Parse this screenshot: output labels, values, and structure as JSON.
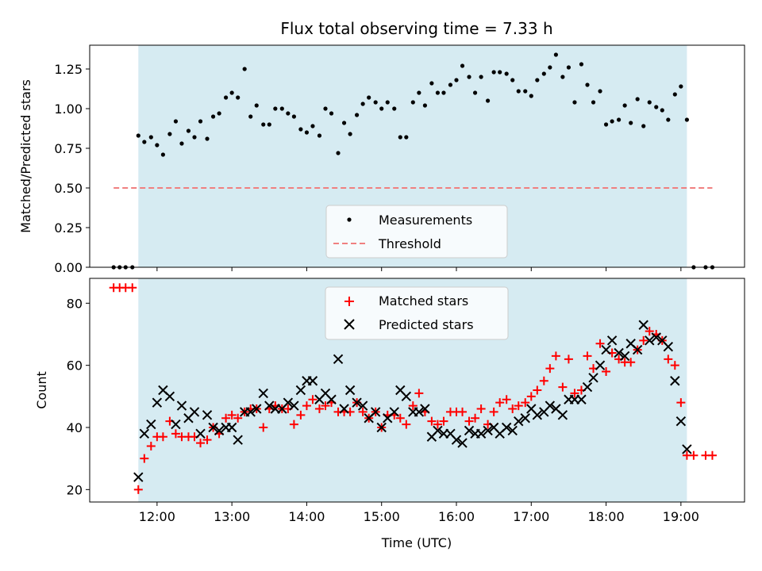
{
  "chart_data": [
    {
      "type": "scatter",
      "title": "Flux total observing time = 7.33 h",
      "xlabel": "",
      "ylabel": "Matched/Predicted stars",
      "xlim": [
        11.1,
        19.85
      ],
      "ylim": [
        0,
        1.4
      ],
      "yticks": [
        "0.00",
        "0.25",
        "0.50",
        "0.75",
        "1.00",
        "1.25"
      ],
      "shaded_span": [
        11.75,
        19.08
      ],
      "grid": false,
      "legend_position": "lower-center",
      "series": [
        {
          "name": "Measurements",
          "marker": "dot",
          "color": "#000000",
          "x": [
            11.42,
            11.5,
            11.58,
            11.67,
            11.75,
            11.83,
            11.92,
            12.0,
            12.08,
            12.17,
            12.25,
            12.33,
            12.42,
            12.5,
            12.58,
            12.67,
            12.75,
            12.83,
            12.92,
            13.0,
            13.08,
            13.17,
            13.25,
            13.33,
            13.42,
            13.5,
            13.58,
            13.67,
            13.75,
            13.83,
            13.92,
            14.0,
            14.08,
            14.17,
            14.25,
            14.33,
            14.42,
            14.5,
            14.58,
            14.67,
            14.75,
            14.83,
            14.92,
            15.0,
            15.08,
            15.17,
            15.25,
            15.33,
            15.42,
            15.5,
            15.58,
            15.67,
            15.75,
            15.83,
            15.92,
            16.0,
            16.08,
            16.17,
            16.25,
            16.33,
            16.42,
            16.5,
            16.58,
            16.67,
            16.75,
            16.83,
            16.92,
            17.0,
            17.08,
            17.17,
            17.25,
            17.33,
            17.42,
            17.5,
            17.58,
            17.67,
            17.75,
            17.83,
            17.92,
            18.0,
            18.08,
            18.17,
            18.25,
            18.33,
            18.42,
            18.5,
            18.58,
            18.67,
            18.75,
            18.83,
            18.92,
            19.0,
            19.08,
            19.17,
            19.33,
            19.42
          ],
          "y": [
            0,
            0,
            0,
            0,
            0.83,
            0.79,
            0.82,
            0.77,
            0.71,
            0.84,
            0.92,
            0.78,
            0.86,
            0.82,
            0.92,
            0.81,
            0.95,
            0.97,
            1.07,
            1.1,
            1.07,
            1.25,
            0.95,
            1.02,
            0.9,
            0.9,
            1.0,
            1.0,
            0.97,
            0.95,
            0.87,
            0.85,
            0.89,
            0.83,
            1.0,
            0.97,
            0.72,
            0.91,
            0.84,
            0.96,
            1.03,
            1.07,
            1.04,
            1.0,
            1.04,
            1.0,
            0.82,
            0.82,
            1.04,
            1.1,
            1.02,
            1.16,
            1.1,
            1.1,
            1.15,
            1.18,
            1.27,
            1.2,
            1.1,
            1.2,
            1.05,
            1.23,
            1.23,
            1.22,
            1.18,
            1.11,
            1.11,
            1.08,
            1.18,
            1.22,
            1.26,
            1.34,
            1.2,
            1.26,
            1.04,
            1.28,
            1.15,
            1.04,
            1.11,
            0.9,
            0.92,
            0.93,
            1.02,
            0.91,
            1.06,
            0.89,
            1.04,
            1.01,
            0.99,
            0.93,
            1.09,
            1.14,
            0.93,
            0,
            0,
            0
          ]
        },
        {
          "name": "Threshold",
          "style": "dashed",
          "color": "#f08080",
          "x": [
            11.42,
            19.42
          ],
          "y": [
            0.5,
            0.5
          ]
        }
      ]
    },
    {
      "type": "scatter",
      "title": "",
      "xlabel": "Time (UTC)",
      "ylabel": "Count",
      "xlim": [
        11.1,
        19.85
      ],
      "ylim": [
        16,
        88
      ],
      "xticks": [
        "12:00",
        "13:00",
        "14:00",
        "15:00",
        "16:00",
        "17:00",
        "18:00",
        "19:00"
      ],
      "yticks": [
        "20",
        "40",
        "60",
        "80"
      ],
      "shaded_span": [
        11.75,
        19.08
      ],
      "grid": false,
      "legend_position": "upper-center",
      "series": [
        {
          "name": "Matched stars",
          "marker": "plus",
          "color": "#ff0000",
          "x": [
            11.42,
            11.5,
            11.58,
            11.67,
            11.75,
            11.83,
            11.92,
            12.0,
            12.08,
            12.17,
            12.25,
            12.33,
            12.42,
            12.5,
            12.58,
            12.67,
            12.75,
            12.83,
            12.92,
            13.0,
            13.08,
            13.17,
            13.25,
            13.33,
            13.42,
            13.5,
            13.58,
            13.67,
            13.75,
            13.83,
            13.92,
            14.0,
            14.08,
            14.17,
            14.25,
            14.33,
            14.42,
            14.5,
            14.58,
            14.67,
            14.75,
            14.83,
            14.92,
            15.0,
            15.08,
            15.17,
            15.25,
            15.33,
            15.42,
            15.5,
            15.58,
            15.67,
            15.75,
            15.83,
            15.92,
            16.0,
            16.08,
            16.17,
            16.25,
            16.33,
            16.42,
            16.5,
            16.58,
            16.67,
            16.75,
            16.83,
            16.92,
            17.0,
            17.08,
            17.17,
            17.25,
            17.33,
            17.42,
            17.5,
            17.58,
            17.67,
            17.75,
            17.83,
            17.92,
            18.0,
            18.08,
            18.17,
            18.25,
            18.33,
            18.42,
            18.5,
            18.58,
            18.67,
            18.75,
            18.83,
            18.92,
            19.0,
            19.08,
            19.17,
            19.33,
            19.42
          ],
          "y": [
            85,
            85,
            85,
            85,
            20,
            30,
            34,
            37,
            37,
            42,
            38,
            37,
            37,
            37,
            35,
            36,
            40,
            38,
            43,
            44,
            43,
            45,
            46,
            46,
            40,
            46,
            47,
            46,
            46,
            41,
            44,
            47,
            49,
            46,
            47,
            48,
            45,
            45,
            45,
            48,
            45,
            43,
            45,
            40,
            44,
            44,
            43,
            41,
            47,
            51,
            45,
            42,
            41,
            42,
            45,
            45,
            45,
            42,
            43,
            46,
            41,
            45,
            48,
            49,
            46,
            47,
            48,
            50,
            52,
            55,
            59,
            63,
            53,
            62,
            51,
            52,
            63,
            59,
            67,
            58,
            64,
            62,
            61,
            61,
            65,
            68,
            71,
            70,
            68,
            62,
            60,
            48,
            31,
            31,
            31,
            31
          ]
        },
        {
          "name": "Predicted stars",
          "marker": "x",
          "color": "#000000",
          "x": [
            11.75,
            11.83,
            11.92,
            12.0,
            12.08,
            12.17,
            12.25,
            12.33,
            12.42,
            12.5,
            12.58,
            12.67,
            12.75,
            12.83,
            12.92,
            13.0,
            13.08,
            13.17,
            13.25,
            13.33,
            13.42,
            13.5,
            13.58,
            13.67,
            13.75,
            13.83,
            13.92,
            14.0,
            14.08,
            14.17,
            14.25,
            14.33,
            14.42,
            14.5,
            14.58,
            14.67,
            14.75,
            14.83,
            14.92,
            15.0,
            15.08,
            15.17,
            15.25,
            15.33,
            15.42,
            15.5,
            15.58,
            15.67,
            15.75,
            15.83,
            15.92,
            16.0,
            16.08,
            16.17,
            16.25,
            16.33,
            16.42,
            16.5,
            16.58,
            16.67,
            16.75,
            16.83,
            16.92,
            17.0,
            17.08,
            17.17,
            17.25,
            17.33,
            17.42,
            17.5,
            17.58,
            17.67,
            17.75,
            17.83,
            17.92,
            18.0,
            18.08,
            18.17,
            18.25,
            18.33,
            18.42,
            18.5,
            18.58,
            18.67,
            18.75,
            18.83,
            18.92,
            19.0,
            19.08
          ],
          "y": [
            24,
            38,
            41,
            48,
            52,
            50,
            41,
            47,
            43,
            45,
            38,
            44,
            40,
            39,
            40,
            40,
            36,
            45,
            45,
            46,
            51,
            47,
            46,
            46,
            48,
            47,
            52,
            55,
            55,
            49,
            51,
            49,
            62,
            46,
            52,
            48,
            47,
            43,
            45,
            40,
            43,
            45,
            52,
            50,
            45,
            45,
            46,
            37,
            39,
            38,
            38,
            36,
            35,
            39,
            38,
            38,
            39,
            40,
            38,
            40,
            39,
            42,
            43,
            46,
            44,
            45,
            47,
            46,
            44,
            49,
            49,
            49,
            53,
            56,
            60,
            65,
            68,
            64,
            63,
            67,
            65,
            73,
            68,
            69,
            68,
            66,
            55,
            42,
            33
          ]
        }
      ]
    }
  ]
}
